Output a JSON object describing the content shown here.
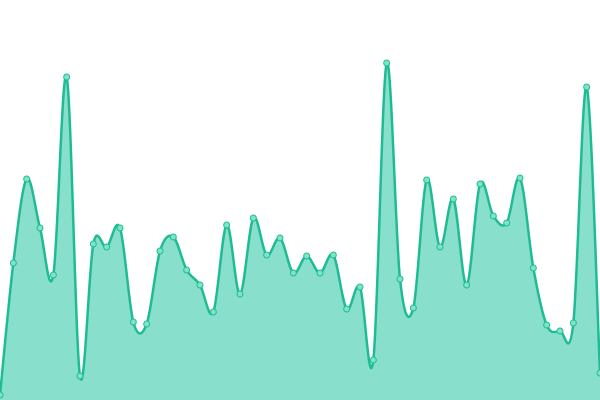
{
  "chart_data": {
    "type": "area",
    "categories": [
      null,
      null,
      null,
      null,
      null,
      null,
      null,
      null,
      null,
      null,
      null,
      null,
      null,
      null,
      null,
      null,
      null,
      null,
      null,
      null,
      null,
      null,
      null,
      null,
      null,
      null,
      null,
      null,
      null,
      null,
      null,
      null,
      null,
      null,
      null,
      null,
      null,
      null,
      null,
      null,
      null,
      null,
      null,
      null,
      null,
      null
    ],
    "values": [
      5,
      137,
      221,
      172,
      125,
      323,
      24,
      156,
      153,
      172,
      78,
      76,
      149,
      163,
      130,
      115,
      88,
      175,
      106,
      182,
      145,
      162,
      127,
      144,
      127,
      145,
      91,
      113,
      40,
      337,
      121,
      92,
      220,
      153,
      201,
      115,
      216,
      184,
      177,
      222,
      132,
      75,
      69,
      77,
      313,
      27
    ],
    "color": "#1fbc94",
    "fill": "#88e0cc",
    "marker_color": "#7fe3c8",
    "ylim": [
      0,
      400
    ]
  }
}
